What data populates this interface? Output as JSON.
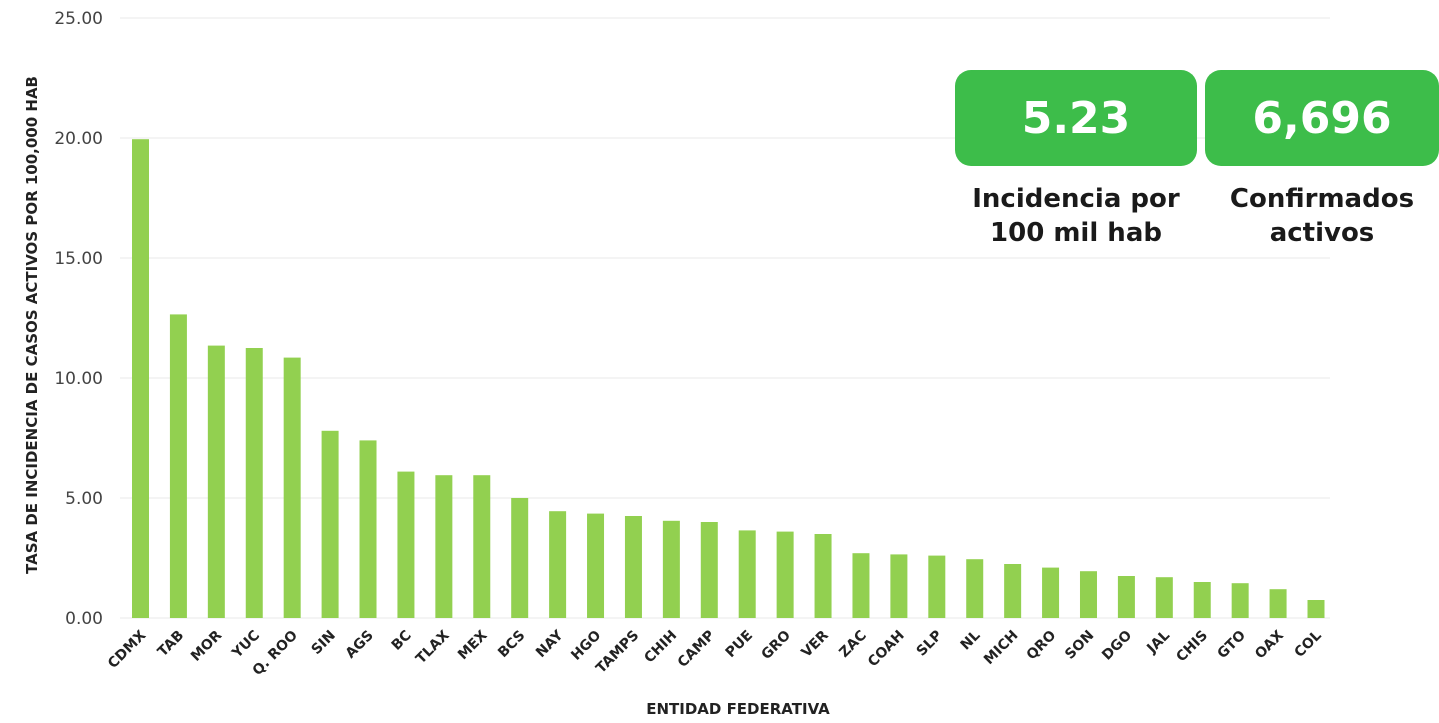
{
  "chart_data": {
    "type": "bar",
    "xlabel": "ENTIDAD FEDERATIVA",
    "ylabel": "TASA DE INCIDENCIA DE CASOS ACTIVOS  POR 100,000 HAB",
    "ylim": [
      0,
      25
    ],
    "yticks": [
      "0.00",
      "5.00",
      "10.00",
      "15.00",
      "20.00",
      "25.00"
    ],
    "grid": true,
    "bar_color": "#92d050",
    "categories": [
      "CDMX",
      "TAB",
      "MOR",
      "YUC",
      "Q. ROO",
      "SIN",
      "AGS",
      "BC",
      "TLAX",
      "MEX",
      "BCS",
      "NAY",
      "HGO",
      "TAMPS",
      "CHIH",
      "CAMP",
      "PUE",
      "GRO",
      "VER",
      "ZAC",
      "COAH",
      "SLP",
      "NL",
      "MICH",
      "QRO",
      "SON",
      "DGO",
      "JAL",
      "CHIS",
      "GTO",
      "OAX",
      "COL"
    ],
    "values": [
      19.95,
      12.65,
      11.35,
      11.25,
      10.85,
      7.8,
      7.4,
      6.1,
      5.95,
      5.95,
      5.0,
      4.45,
      4.35,
      4.25,
      4.05,
      4.0,
      3.65,
      3.6,
      3.5,
      2.7,
      2.65,
      2.6,
      2.45,
      2.25,
      2.1,
      1.95,
      1.75,
      1.7,
      1.5,
      1.45,
      1.2,
      0.75
    ]
  },
  "kpis": [
    {
      "value": "5.23",
      "label_line1": "Incidencia por",
      "label_line2": "100 mil hab"
    },
    {
      "value": "6,696",
      "label_line1": "Confirmados",
      "label_line2": "activos"
    }
  ],
  "colors": {
    "kpi_green": "#3dbd4a",
    "grid": "#e9e9e9"
  }
}
